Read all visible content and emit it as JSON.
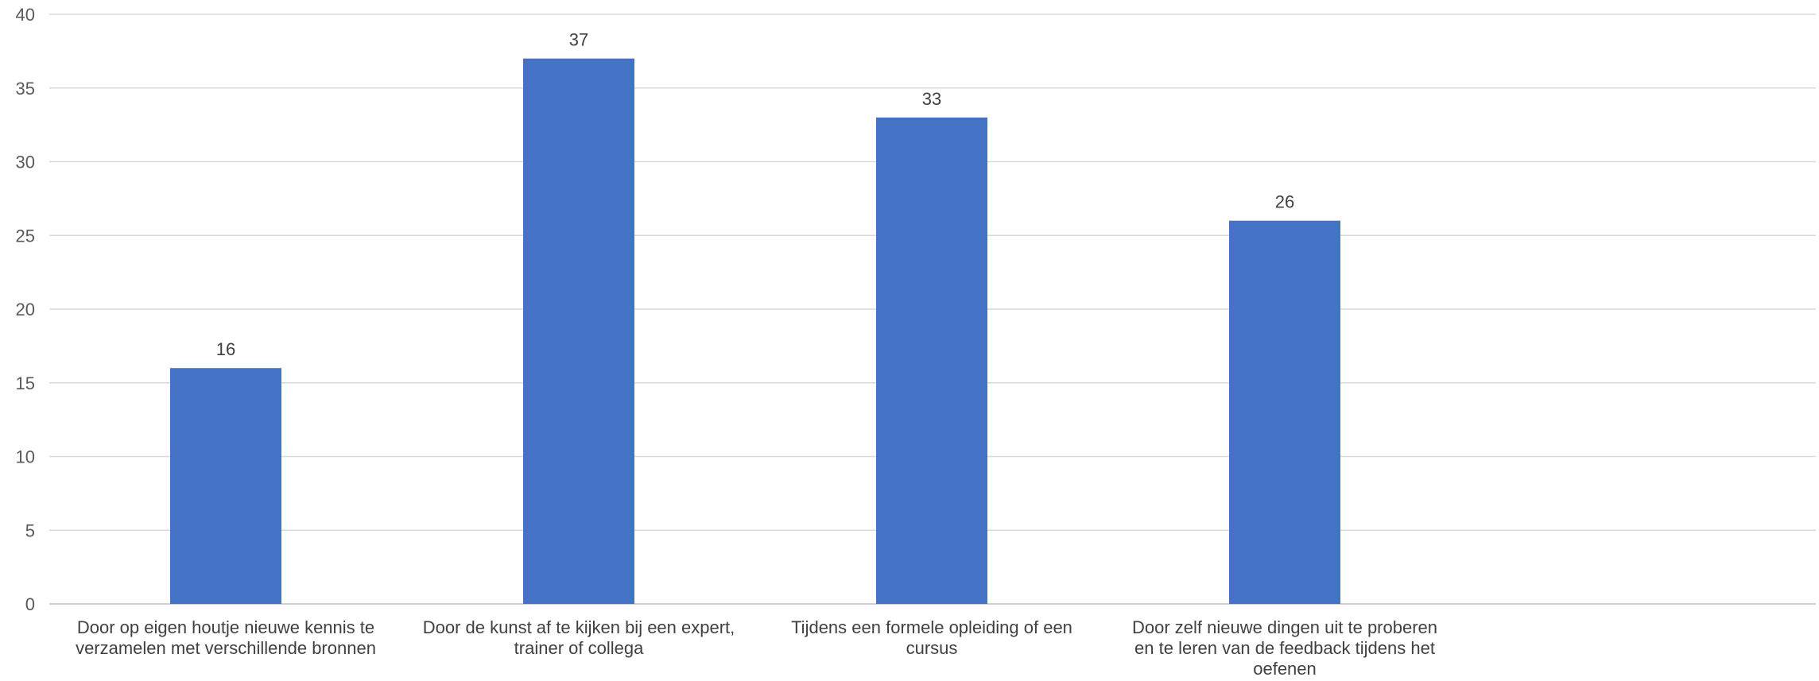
{
  "chart_data": {
    "type": "bar",
    "title": "",
    "xlabel": "",
    "ylabel": "",
    "ylim": [
      0,
      40
    ],
    "ytick_step": 5,
    "yticks": [
      "0",
      "5",
      "10",
      "15",
      "20",
      "25",
      "30",
      "35",
      "40"
    ],
    "grid": true,
    "legend": "none",
    "bar_color": "#4472C4",
    "categories": [
      [
        "Door op eigen houtje nieuwe kennis te",
        "verzamelen met verschillende bronnen"
      ],
      [
        "Door de kunst af te kijken bij een expert,",
        "trainer of collega"
      ],
      [
        "Tijdens een formele opleiding of een",
        "cursus"
      ],
      [
        "Door zelf nieuwe dingen uit te proberen",
        "en te leren van de feedback tijdens het",
        "oefenen"
      ]
    ],
    "values": [
      16,
      37,
      33,
      26
    ],
    "data_labels": [
      "16",
      "37",
      "33",
      "26"
    ]
  }
}
